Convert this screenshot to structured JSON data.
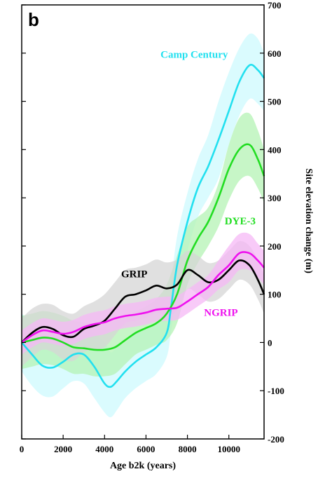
{
  "chart_data": {
    "type": "line",
    "panel_label": "b",
    "xlabel": "Age b2k (years)",
    "ylabel": "Site elevation change (m)",
    "xlim": [
      0,
      11700
    ],
    "ylim": [
      -200,
      700
    ],
    "xticks": [
      0,
      2000,
      4000,
      6000,
      8000,
      10000
    ],
    "yticks": [
      -200,
      -100,
      0,
      100,
      200,
      300,
      400,
      500,
      600,
      700
    ],
    "y_axis_side": "right",
    "grid": false,
    "legend": "inline labels",
    "series": [
      {
        "name": "Camp Century",
        "color": "#22e0ef",
        "band_color": "#cdfafd",
        "x": [
          0,
          500,
          1000,
          1500,
          2000,
          2500,
          3000,
          3500,
          4000,
          4300,
          4600,
          5000,
          5500,
          6000,
          6500,
          7000,
          7200,
          7500,
          8000,
          8500,
          9000,
          9500,
          10000,
          10500,
          11000,
          11400,
          11700
        ],
        "y": [
          0,
          -25,
          -48,
          -52,
          -40,
          -25,
          -25,
          -50,
          -85,
          -92,
          -80,
          -60,
          -40,
          -25,
          -10,
          20,
          70,
          160,
          250,
          320,
          365,
          420,
          480,
          540,
          575,
          565,
          548
        ],
        "upper": [
          60,
          40,
          10,
          0,
          10,
          30,
          35,
          20,
          0,
          -20,
          -10,
          0,
          20,
          30,
          40,
          60,
          120,
          220,
          310,
          380,
          430,
          500,
          560,
          610,
          640,
          630,
          600
        ],
        "lower": [
          -60,
          -90,
          -110,
          -112,
          -95,
          -80,
          -85,
          -115,
          -145,
          -155,
          -140,
          -115,
          -95,
          -80,
          -65,
          -30,
          20,
          100,
          190,
          260,
          300,
          340,
          410,
          470,
          505,
          495,
          480
        ]
      },
      {
        "name": "DYE-3",
        "color": "#22dd22",
        "band_color": "#b4f3b4",
        "x": [
          0,
          500,
          1000,
          1500,
          2000,
          2500,
          3000,
          3500,
          4000,
          4500,
          5000,
          5500,
          6000,
          6500,
          7000,
          7500,
          8000,
          8500,
          9000,
          9500,
          10000,
          10500,
          11000,
          11400,
          11700
        ],
        "y": [
          0,
          5,
          10,
          8,
          0,
          -10,
          -12,
          -15,
          -15,
          -10,
          5,
          20,
          30,
          40,
          60,
          100,
          170,
          215,
          250,
          300,
          360,
          400,
          410,
          380,
          345
        ],
        "upper": [
          55,
          60,
          65,
          62,
          55,
          45,
          42,
          40,
          40,
          45,
          55,
          65,
          75,
          90,
          120,
          180,
          240,
          260,
          280,
          330,
          410,
          465,
          475,
          440,
          400
        ],
        "lower": [
          -55,
          -50,
          -45,
          -47,
          -55,
          -65,
          -65,
          -70,
          -70,
          -65,
          -45,
          -25,
          -15,
          -5,
          5,
          40,
          120,
          165,
          200,
          240,
          295,
          335,
          345,
          320,
          290
        ]
      },
      {
        "name": "GRIP",
        "color": "#000000",
        "band_color": "#d5d5d5",
        "x": [
          0,
          500,
          1000,
          1500,
          2000,
          2500,
          3000,
          3500,
          4000,
          4500,
          5000,
          5500,
          6000,
          6500,
          7000,
          7500,
          8000,
          8500,
          9000,
          9500,
          10000,
          10500,
          11000,
          11400,
          11700
        ],
        "y": [
          0,
          20,
          32,
          28,
          15,
          12,
          28,
          35,
          45,
          70,
          95,
          100,
          108,
          118,
          112,
          120,
          150,
          140,
          125,
          130,
          150,
          170,
          160,
          130,
          100
        ],
        "upper": [
          50,
          70,
          80,
          78,
          65,
          60,
          75,
          85,
          100,
          125,
          150,
          155,
          162,
          172,
          166,
          172,
          190,
          180,
          165,
          170,
          190,
          210,
          200,
          170,
          140
        ],
        "lower": [
          -50,
          -30,
          -15,
          -20,
          -35,
          -38,
          -20,
          -15,
          -10,
          15,
          40,
          45,
          52,
          62,
          56,
          68,
          110,
          100,
          85,
          90,
          110,
          130,
          120,
          90,
          60
        ]
      },
      {
        "name": "NGRIP",
        "color": "#ee11ee",
        "band_color": "#f6b8f6",
        "x": [
          0,
          500,
          1000,
          1500,
          2000,
          2500,
          3000,
          3500,
          4000,
          4500,
          5000,
          5500,
          6000,
          6500,
          7000,
          7500,
          8000,
          8500,
          9000,
          9500,
          10000,
          10500,
          11000,
          11400,
          11700
        ],
        "y": [
          0,
          15,
          25,
          22,
          18,
          22,
          32,
          38,
          42,
          50,
          55,
          58,
          62,
          68,
          70,
          72,
          85,
          100,
          115,
          140,
          160,
          185,
          185,
          170,
          155
        ],
        "upper": [
          25,
          40,
          50,
          47,
          43,
          47,
          57,
          63,
          67,
          75,
          80,
          83,
          87,
          93,
          95,
          97,
          110,
          125,
          140,
          170,
          200,
          225,
          225,
          205,
          190
        ],
        "lower": [
          -25,
          -10,
          0,
          -3,
          -7,
          -3,
          7,
          13,
          17,
          25,
          30,
          33,
          37,
          43,
          45,
          47,
          60,
          75,
          90,
          110,
          125,
          150,
          150,
          135,
          120
        ]
      }
    ],
    "series_labels": [
      {
        "text": "Camp Century",
        "color": "#22e0ef",
        "x": 6700,
        "y": 590
      },
      {
        "text": "DYE-3",
        "color": "#22dd22",
        "x": 9800,
        "y": 245
      },
      {
        "text": "GRIP",
        "color": "#000000",
        "x": 4800,
        "y": 135
      },
      {
        "text": "NGRIP",
        "color": "#ee11ee",
        "x": 8800,
        "y": 55
      }
    ]
  }
}
